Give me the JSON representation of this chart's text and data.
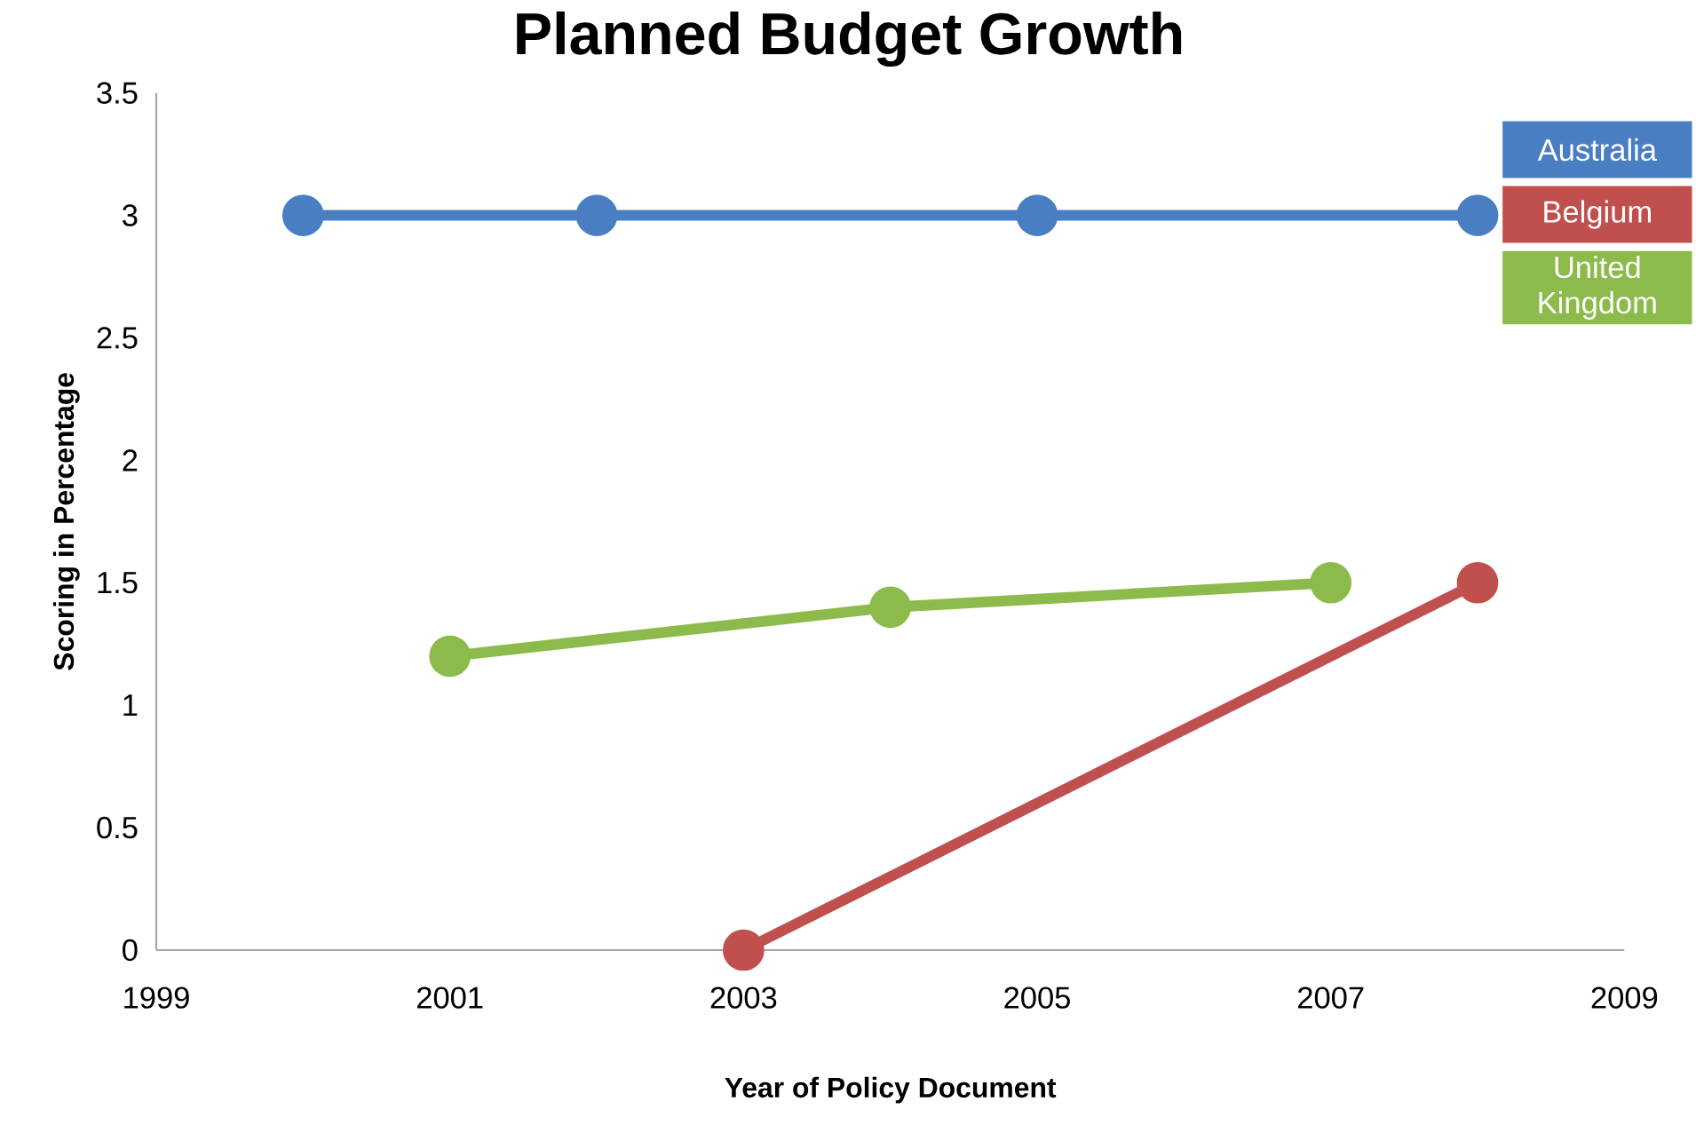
{
  "chart_data": {
    "type": "line",
    "title": "Planned Budget Growth",
    "xlabel": "Year of Policy Document",
    "ylabel": "Scoring in Percentage",
    "series": [
      {
        "name": "Australia",
        "color": "#4a7ec2",
        "x": [
          2000,
          2002,
          2005,
          2008
        ],
        "values": [
          3,
          3,
          3,
          3
        ]
      },
      {
        "name": "Belgium",
        "color": "#c0504d",
        "x": [
          2003,
          2008
        ],
        "values": [
          0,
          1.5
        ]
      },
      {
        "name": "United Kingdom",
        "color": "#8cbb4b",
        "x": [
          2001,
          2004,
          2007
        ],
        "values": [
          1.2,
          1.4,
          1.5
        ]
      }
    ],
    "xlim": [
      1999,
      2009
    ],
    "xticks": [
      1999,
      2001,
      2003,
      2005,
      2007,
      2009
    ],
    "ylim": [
      0,
      3.5
    ],
    "yticks": [
      0,
      0.5,
      1,
      1.5,
      2,
      2.5,
      3,
      3.5
    ],
    "grid": false,
    "legend": "top right",
    "marker": "circle",
    "line_style": "solid"
  }
}
